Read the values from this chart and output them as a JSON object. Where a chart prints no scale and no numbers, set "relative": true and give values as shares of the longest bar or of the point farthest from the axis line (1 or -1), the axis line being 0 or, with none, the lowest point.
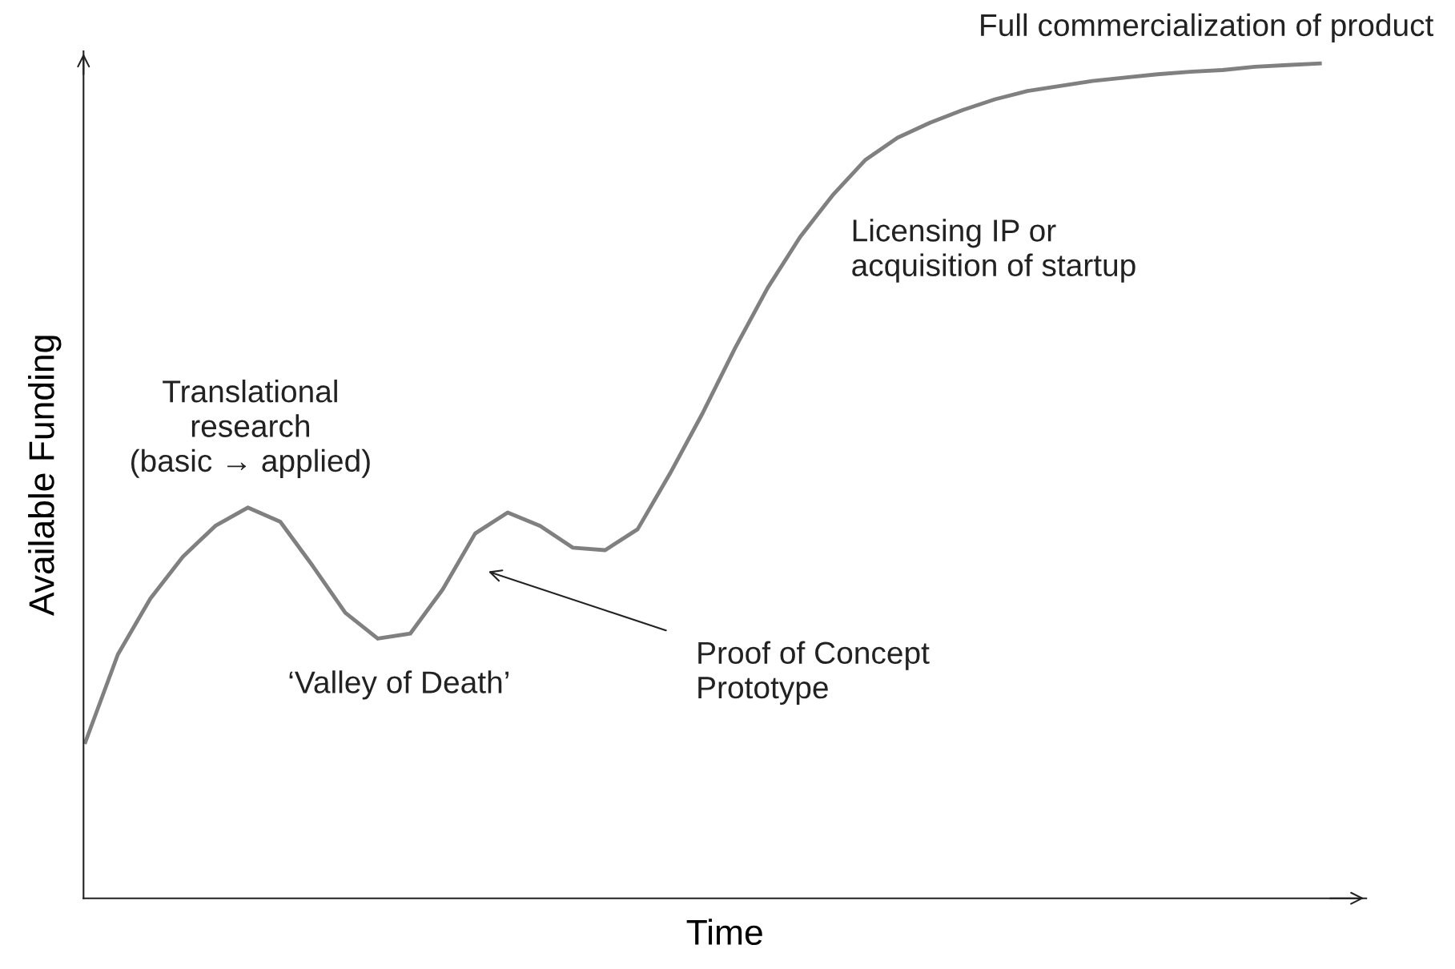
{
  "chart_data": {
    "type": "line",
    "relative": true,
    "xlabel": "Time",
    "ylabel": "Available Funding",
    "color": "#808080",
    "grid": false,
    "marker": "none",
    "line_style": "solid",
    "categories": [
      null,
      null,
      null,
      null,
      null,
      null,
      null,
      null,
      null,
      null,
      null,
      null,
      null,
      null,
      null,
      null,
      null,
      null,
      null,
      null,
      null,
      null,
      null,
      null,
      null,
      null,
      null,
      null,
      null,
      null,
      null,
      null,
      null,
      null,
      null,
      null,
      null,
      null,
      null
    ],
    "values": [
      0.187,
      0.292,
      0.359,
      0.409,
      0.446,
      0.468,
      0.451,
      0.398,
      0.342,
      0.311,
      0.317,
      0.37,
      0.437,
      0.462,
      0.446,
      0.42,
      0.417,
      0.442,
      0.509,
      0.581,
      0.659,
      0.731,
      0.792,
      0.842,
      0.884,
      0.911,
      0.929,
      0.944,
      0.957,
      0.967,
      0.973,
      0.979,
      0.983,
      0.987,
      0.99,
      0.992,
      0.996,
      0.998,
      1.0
    ],
    "annotations": [
      "Full commercialization of product",
      "Licensing IP or\nacquisition of startup",
      "Translational\nresearch\n(basic → applied)",
      "‘Valley of Death’",
      "Proof of Concept\nPrototype"
    ]
  }
}
